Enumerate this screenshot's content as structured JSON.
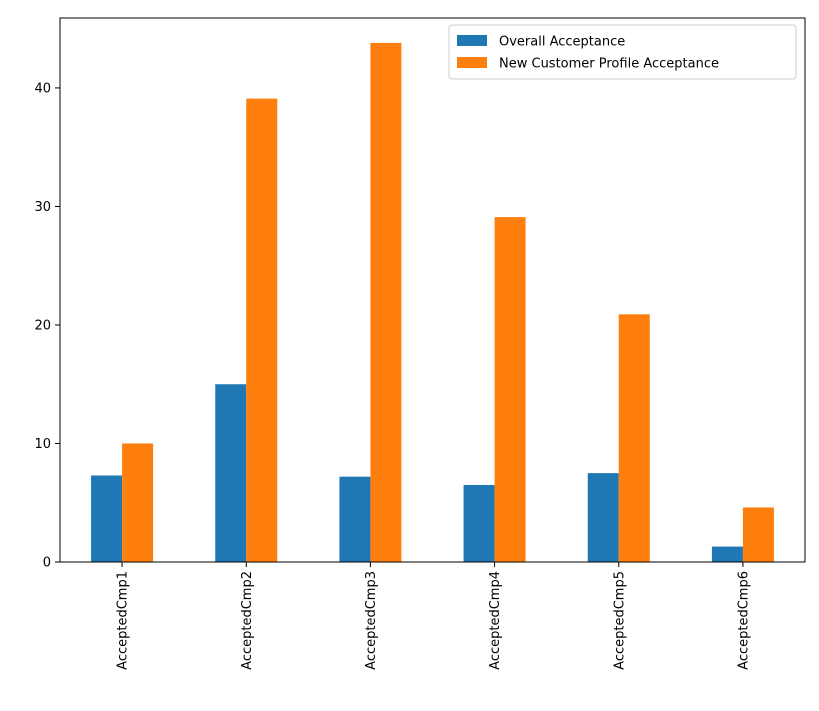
{
  "chart_data": {
    "type": "bar",
    "categories": [
      "AcceptedCmp1",
      "AcceptedCmp2",
      "AcceptedCmp3",
      "AcceptedCmp4",
      "AcceptedCmp5",
      "AcceptedCmp6"
    ],
    "series": [
      {
        "name": "Overall Acceptance",
        "color": "#1f77b4",
        "values": [
          7.3,
          15.0,
          7.2,
          6.5,
          7.5,
          1.3
        ]
      },
      {
        "name": "New Customer Profile Acceptance",
        "color": "#ff7f0e",
        "values": [
          10.0,
          39.1,
          43.8,
          29.1,
          20.9,
          4.6
        ]
      }
    ],
    "title": "",
    "xlabel": "",
    "ylabel": "",
    "ylim": [
      0,
      45.9
    ],
    "yticks": [
      0,
      10,
      20,
      30,
      40
    ],
    "grid": false,
    "legend_position": "top-right"
  }
}
